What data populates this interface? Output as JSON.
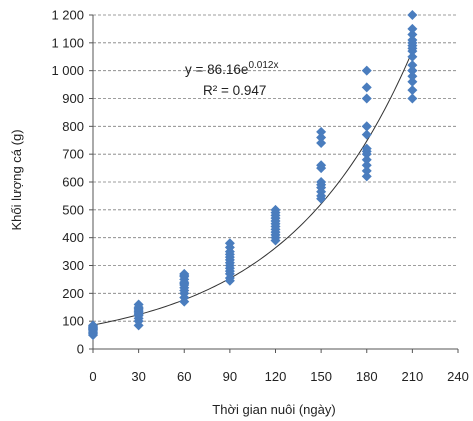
{
  "chart_data": {
    "type": "scatter",
    "xlabel": "Thời gian nuôi (ngày)",
    "ylabel": "Khối lượng cá (g)",
    "xlim": [
      0,
      240
    ],
    "ylim": [
      0,
      1200
    ],
    "xticks": [
      0,
      30,
      60,
      90,
      120,
      150,
      180,
      210,
      240
    ],
    "yticks": [
      0,
      100,
      200,
      300,
      400,
      500,
      600,
      700,
      800,
      900,
      1000,
      1100,
      1200
    ],
    "xtick_labels": [
      "0",
      "30",
      "60",
      "90",
      "120",
      "150",
      "180",
      "210",
      "240"
    ],
    "ytick_labels": [
      "0",
      "100",
      "200",
      "300",
      "400",
      "500",
      "600",
      "700",
      "800",
      "900",
      "1 000",
      "1 100",
      "1 200"
    ],
    "grid": "horizontal",
    "legend": "none",
    "marker": "diamond",
    "marker_color": "#4a7dbe",
    "trendline": {
      "type": "exponential",
      "a": 86.16,
      "b": 0.012,
      "color": "#333333",
      "equation_base": "y = 86.16e",
      "equation_exponent": "0.012x",
      "r_squared": "R² = 0.947"
    },
    "series": [
      {
        "x": [
          0,
          0,
          0,
          0,
          0,
          0,
          0,
          0,
          0,
          0,
          30,
          30,
          30,
          30,
          30,
          30,
          30,
          30,
          30,
          30,
          30,
          60,
          60,
          60,
          60,
          60,
          60,
          60,
          60,
          60,
          60,
          60,
          60,
          90,
          90,
          90,
          90,
          90,
          90,
          90,
          90,
          90,
          90,
          90,
          90,
          90,
          120,
          120,
          120,
          120,
          120,
          120,
          120,
          120,
          120,
          120,
          120,
          120,
          150,
          150,
          150,
          150,
          150,
          150,
          150,
          150,
          150,
          150,
          150,
          180,
          180,
          180,
          180,
          180,
          180,
          180,
          180,
          180,
          180,
          180,
          180,
          180,
          210,
          210,
          210,
          210,
          210,
          210,
          210,
          210,
          210,
          210,
          210,
          210,
          210,
          210,
          210,
          210
        ],
        "y": [
          50,
          55,
          60,
          65,
          70,
          72,
          75,
          78,
          80,
          85,
          85,
          100,
          110,
          120,
          125,
          130,
          135,
          140,
          145,
          150,
          160,
          170,
          185,
          200,
          210,
          220,
          230,
          235,
          240,
          250,
          260,
          265,
          270,
          245,
          255,
          270,
          280,
          290,
          300,
          310,
          320,
          330,
          340,
          350,
          365,
          380,
          390,
          400,
          410,
          420,
          430,
          440,
          450,
          460,
          470,
          480,
          490,
          500,
          540,
          550,
          565,
          580,
          590,
          600,
          650,
          660,
          740,
          760,
          780,
          620,
          640,
          660,
          680,
          700,
          710,
          720,
          770,
          800,
          900,
          940,
          1000,
          800,
          900,
          930,
          960,
          980,
          1000,
          1020,
          1050,
          1070,
          1080,
          1090,
          1100,
          1110,
          1130,
          1150,
          1200,
          1000
        ]
      }
    ]
  }
}
